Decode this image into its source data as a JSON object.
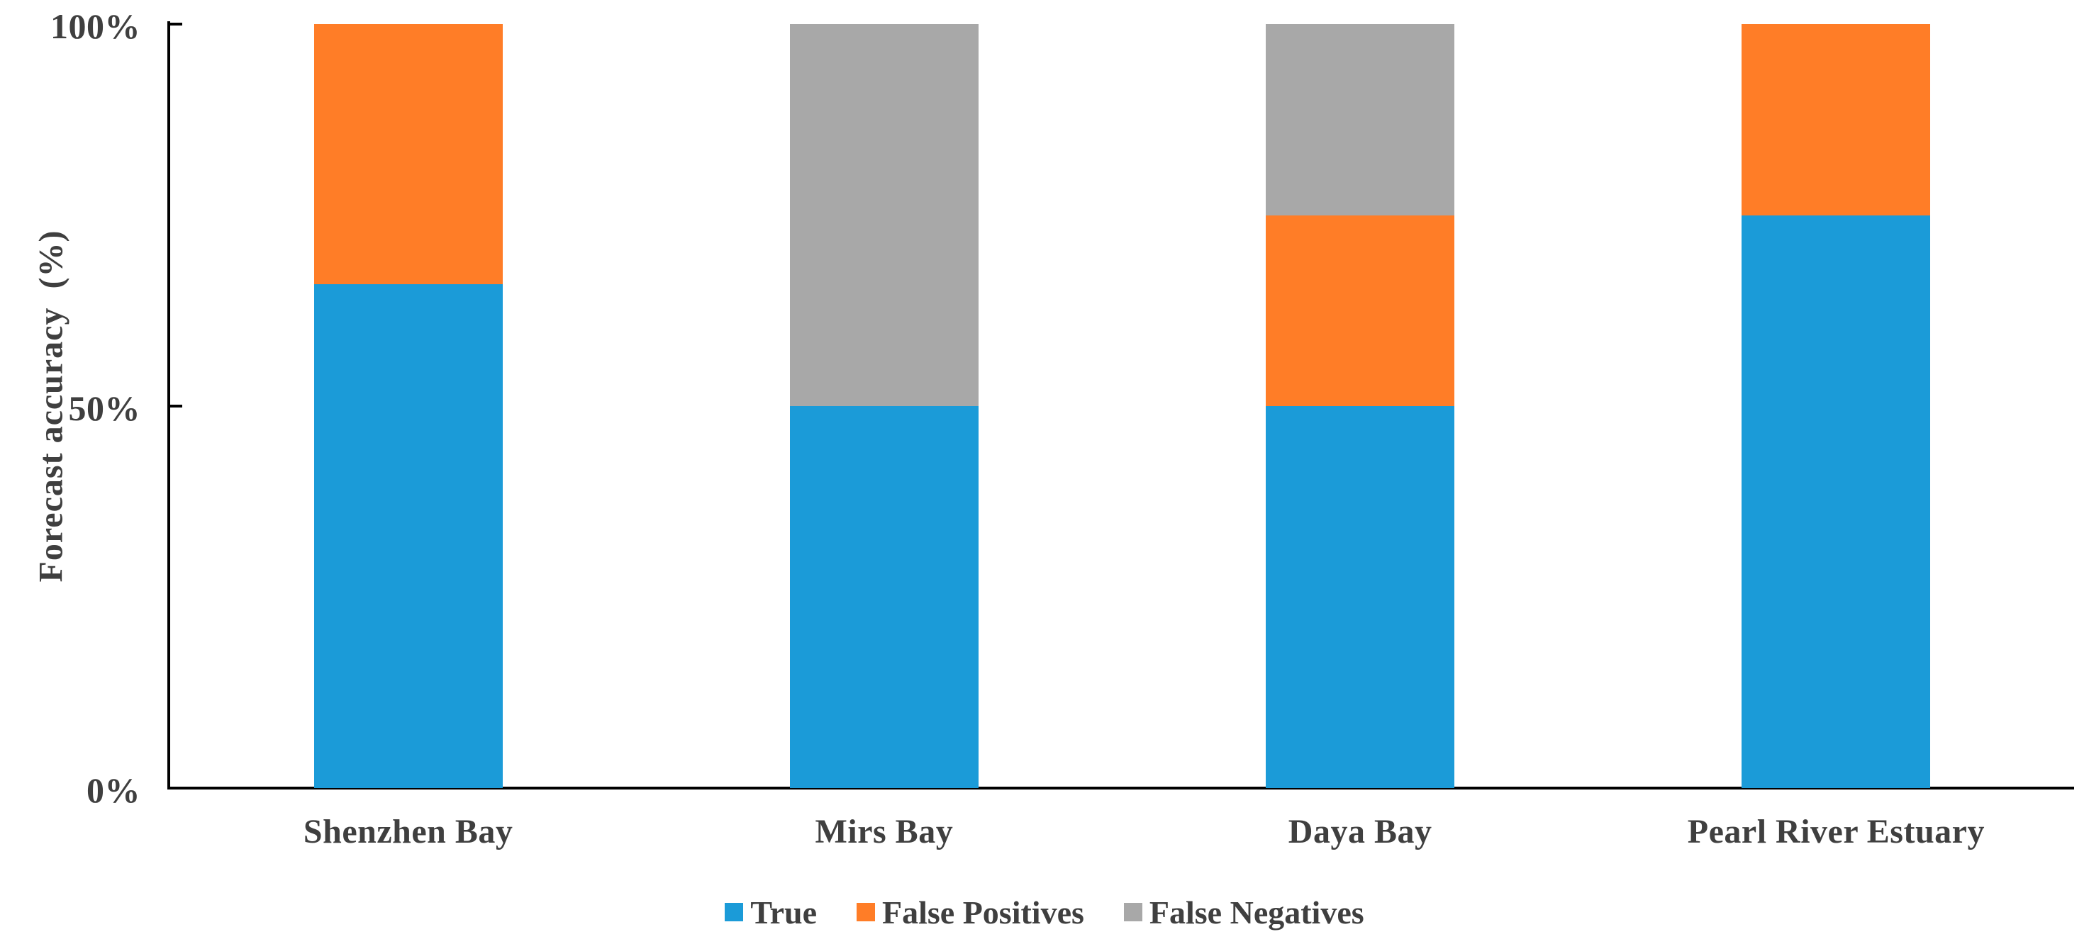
{
  "chart_data": {
    "type": "bar",
    "stacked": true,
    "orientation": "vertical",
    "title": "",
    "xlabel": "",
    "ylabel": "Forecast accuracy  (%)",
    "ylim": [
      0,
      100
    ],
    "grid": false,
    "legend_position": "bottom",
    "categories": [
      "Shenzhen Bay",
      "Mirs Bay",
      "Daya Bay",
      "Pearl River Estuary"
    ],
    "series": [
      {
        "name": "True",
        "color": "#1B9BD8",
        "values": [
          66,
          50,
          50,
          75
        ]
      },
      {
        "name": "False Positives",
        "color": "#FF7D27",
        "values": [
          34,
          0,
          25,
          25
        ]
      },
      {
        "name": "False Negatives",
        "color": "#A8A8A8",
        "values": [
          0,
          50,
          25,
          0
        ]
      }
    ],
    "y_ticks": [
      {
        "label": "0%",
        "value": 0
      },
      {
        "label": "50%",
        "value": 50
      },
      {
        "label": "100%",
        "value": 100
      }
    ],
    "axis_color": "#000000",
    "label_color": "#3F3F3F"
  }
}
